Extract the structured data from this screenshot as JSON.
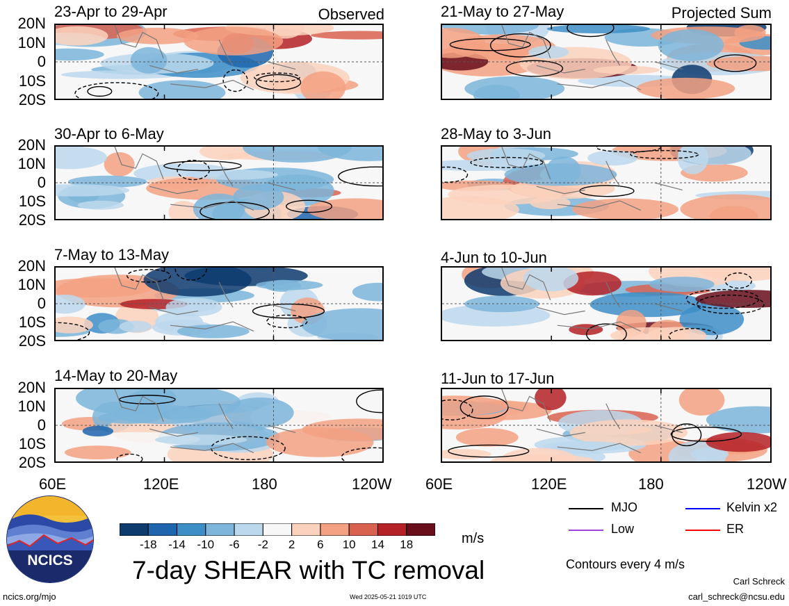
{
  "panels_left": [
    {
      "title": "23-Apr to 29-Apr",
      "tag": "Observed"
    },
    {
      "title": "30-Apr to 6-May",
      "tag": ""
    },
    {
      "title": "7-May to 13-May",
      "tag": ""
    },
    {
      "title": "14-May to 20-May",
      "tag": ""
    }
  ],
  "panels_right": [
    {
      "title": "21-May to 27-May",
      "tag": "Projected Sum"
    },
    {
      "title": "28-May to 3-Jun",
      "tag": ""
    },
    {
      "title": "4-Jun to 10-Jun",
      "tag": ""
    },
    {
      "title": "11-Jun to 17-Jun",
      "tag": ""
    }
  ],
  "lat_labels": [
    "20N",
    "10N",
    "0",
    "10S",
    "20S"
  ],
  "lon_labels_left": [
    "60E",
    "120E",
    "180",
    "120W"
  ],
  "lon_labels_right": [
    "60E",
    "120E",
    "180",
    "120W"
  ],
  "colorbar": {
    "ticks": [
      "-18",
      "-14",
      "-10",
      "-6",
      "-2",
      "2",
      "6",
      "10",
      "14",
      "18"
    ],
    "colors": [
      "#0d3b6e",
      "#1f65ad",
      "#3d8ec7",
      "#7db5db",
      "#bcd8ec",
      "#f7f7f7",
      "#fbd2bd",
      "#f3a182",
      "#d96150",
      "#b42127",
      "#690e1b"
    ],
    "units": "m/s"
  },
  "title": "7-day SHEAR with TC removal",
  "legend": {
    "items": [
      {
        "label": "MJO",
        "color": "#000000"
      },
      {
        "label": "Kelvin x2",
        "color": "#0000ff"
      },
      {
        "label": "Low",
        "color": "#a040e0"
      },
      {
        "label": "ER",
        "color": "#ff0000"
      }
    ],
    "contour_note": "Contours every 4 m/s"
  },
  "logo": {
    "text": "NCICS"
  },
  "footer": {
    "url": "ncics.org/mjo",
    "timestamp": "Wed 2025-05-21 1019 UTC",
    "author": "Carl Schreck",
    "email": "carl_schreck@ncsu.edu"
  },
  "chart_data": {
    "type": "heatmap",
    "variable": "7-day vertical wind shear anomaly with TC removal",
    "units": "m/s",
    "x_range": [
      "60E",
      "120W"
    ],
    "y_range": [
      "20S",
      "20N"
    ],
    "color_levels": [
      -18,
      -14,
      -10,
      -6,
      -2,
      2,
      6,
      10,
      14,
      18
    ],
    "contour_interval": 4,
    "panels": [
      {
        "period": "23-Apr to 29-Apr",
        "type": "Observed"
      },
      {
        "period": "30-Apr to 6-May",
        "type": "Observed"
      },
      {
        "period": "7-May to 13-May",
        "type": "Observed"
      },
      {
        "period": "14-May to 20-May",
        "type": "Observed"
      },
      {
        "period": "21-May to 27-May",
        "type": "Projected Sum"
      },
      {
        "period": "28-May to 3-Jun",
        "type": "Projected Sum"
      },
      {
        "period": "4-Jun to 10-Jun",
        "type": "Projected Sum"
      },
      {
        "period": "11-Jun to 17-Jun",
        "type": "Projected Sum"
      }
    ]
  }
}
